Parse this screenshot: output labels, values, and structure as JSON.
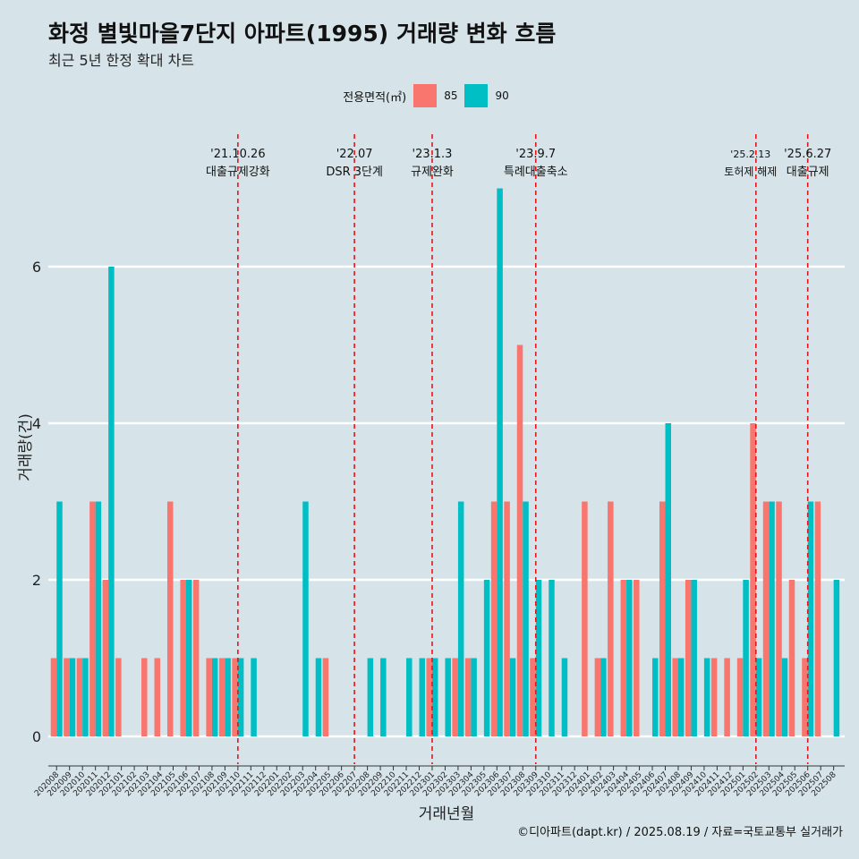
{
  "chart_data": {
    "type": "bar",
    "title": "화정 별빛마을7단지 아파트(1995) 거래량 변화 흐름",
    "subtitle": "최근 5년 한정 확대 차트",
    "xlabel": "거래년월",
    "ylabel": "거래량(건)",
    "ylim": [
      -0.3,
      7.5
    ],
    "yticks": [
      0,
      2,
      4,
      6
    ],
    "legend_title": "전용면적(㎡)",
    "legend_position": "top",
    "caption": "©디아파트(dapt.kr) / 2025.08.19 / 자료=국토교통부 실거래가",
    "categories": [
      "202008",
      "202009",
      "202010",
      "202011",
      "202012",
      "202101",
      "202102",
      "202103",
      "202104",
      "202105",
      "202106",
      "202107",
      "202108",
      "202109",
      "202110",
      "202111",
      "202112",
      "202201",
      "202202",
      "202203",
      "202204",
      "202205",
      "202206",
      "202207",
      "202208",
      "202209",
      "202210",
      "202211",
      "202212",
      "202301",
      "202302",
      "202303",
      "202304",
      "202305",
      "202306",
      "202307",
      "202308",
      "202309",
      "202310",
      "202311",
      "202312",
      "202401",
      "202402",
      "202403",
      "202404",
      "202405",
      "202406",
      "202407",
      "202408",
      "202409",
      "202410",
      "202411",
      "202412",
      "202501",
      "202502",
      "202503",
      "202504",
      "202505",
      "202506",
      "202507",
      "202508"
    ],
    "series": [
      {
        "name": "85",
        "color": "#f8766d",
        "values": [
          1,
          1,
          1,
          3,
          2,
          1,
          0,
          1,
          1,
          3,
          2,
          2,
          1,
          1,
          1,
          0,
          0,
          0,
          0,
          0,
          0,
          1,
          0,
          0,
          0,
          0,
          0,
          0,
          0,
          1,
          0,
          1,
          1,
          0,
          3,
          3,
          5,
          1,
          0,
          0,
          0,
          3,
          1,
          3,
          2,
          2,
          0,
          3,
          1,
          2,
          0,
          1,
          1,
          1,
          4,
          3,
          3,
          2,
          1,
          3,
          0
        ]
      },
      {
        "name": "90",
        "color": "#00bfc4",
        "values": [
          3,
          1,
          1,
          3,
          6,
          0,
          0,
          0,
          0,
          0,
          2,
          0,
          1,
          1,
          1,
          1,
          0,
          0,
          0,
          3,
          1,
          0,
          0,
          0,
          1,
          1,
          0,
          1,
          1,
          1,
          1,
          3,
          1,
          2,
          7,
          1,
          3,
          2,
          2,
          1,
          0,
          0,
          1,
          0,
          2,
          0,
          1,
          4,
          1,
          2,
          1,
          0,
          0,
          2,
          1,
          3,
          1,
          0,
          3,
          0,
          2
        ]
      }
    ],
    "events": [
      {
        "date": "'21.10.26",
        "label": "대출규제강화",
        "category": "202110"
      },
      {
        "date": "'22.07",
        "label": "DSR 3단계",
        "category": "202207"
      },
      {
        "date": "'23.1.3",
        "label": "규제완화",
        "category": "202301"
      },
      {
        "date": "'23.9.7",
        "label": "특례대출축소",
        "category": "202309"
      },
      {
        "date": "'25.2.13",
        "label": "토허제 해제",
        "category": "202502"
      },
      {
        "date": "'25.6.27",
        "label": "대출규제",
        "category": "202506"
      }
    ]
  }
}
